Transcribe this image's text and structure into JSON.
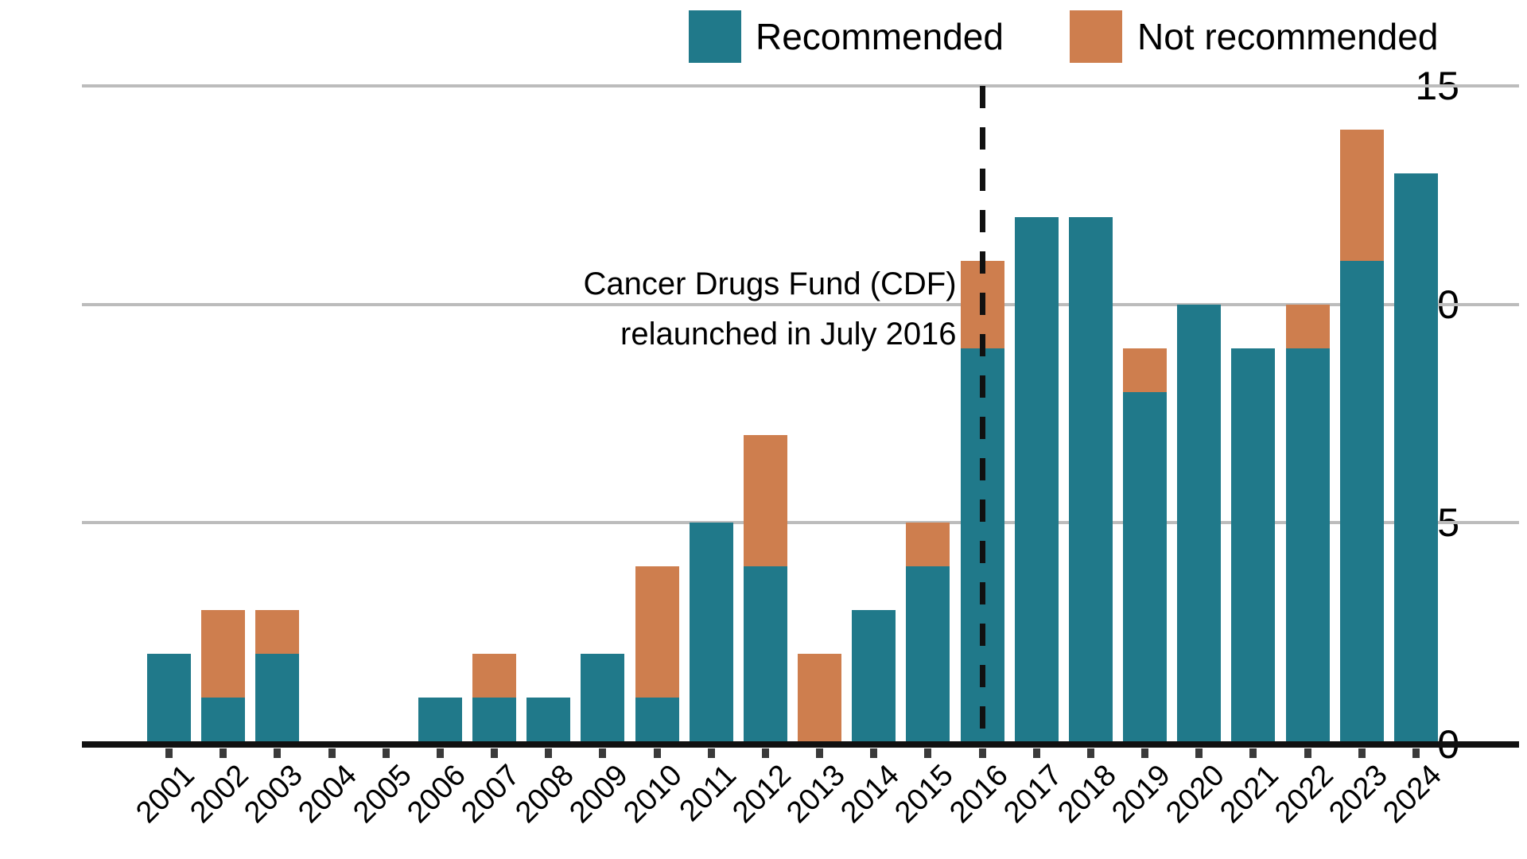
{
  "chart_data": {
    "type": "bar",
    "stacked": true,
    "categories": [
      "2001",
      "2002",
      "2003",
      "2004",
      "2005",
      "2006",
      "2007",
      "2008",
      "2009",
      "2010",
      "2011",
      "2012",
      "2013",
      "2014",
      "2015",
      "2016",
      "2017",
      "2018",
      "2019",
      "2020",
      "2021",
      "2022",
      "2023",
      "2024"
    ],
    "series": [
      {
        "name": "Recommended",
        "color": "#20798a",
        "values": [
          2,
          1,
          2,
          0,
          0,
          1,
          1,
          1,
          2,
          1,
          5,
          4,
          0,
          3,
          4,
          9,
          12,
          12,
          8,
          10,
          9,
          9,
          11,
          13
        ]
      },
      {
        "name": "Not recommended",
        "color": "#ce7e4e",
        "values": [
          0,
          2,
          1,
          0,
          0,
          0,
          1,
          0,
          0,
          3,
          0,
          3,
          2,
          0,
          1,
          2,
          0,
          0,
          1,
          0,
          0,
          1,
          3,
          0
        ]
      }
    ],
    "totals": [
      2,
      3,
      3,
      0,
      0,
      1,
      2,
      1,
      2,
      4,
      5,
      7,
      2,
      3,
      5,
      11,
      12,
      12,
      9,
      10,
      9,
      10,
      14,
      13
    ],
    "ylim": [
      0,
      15
    ],
    "yticks": [
      0,
      5,
      10,
      15
    ],
    "grid": "horizontal",
    "legend_position": "top-right",
    "reference_line": {
      "category": "2016",
      "style": "dashed",
      "color": "#111111"
    },
    "annotation": {
      "line1": "Cancer Drugs Fund (CDF)",
      "line2": "relaunched in July 2016",
      "attached_to": "2016"
    }
  },
  "legend": {
    "items": [
      {
        "label": "Recommended",
        "color": "#20798a"
      },
      {
        "label": "Not recommended",
        "color": "#ce7e4e"
      }
    ]
  },
  "colors": {
    "recommended": "#20798a",
    "not_recommended": "#ce7e4e",
    "gridline": "#bcbcbc",
    "axis": "#111111",
    "text": "#000000"
  }
}
